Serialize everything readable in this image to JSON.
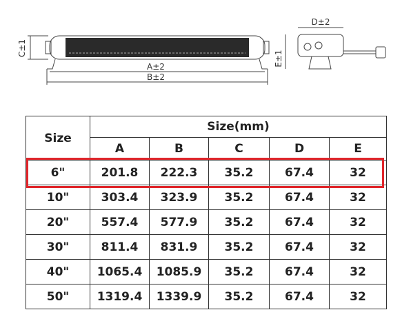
{
  "drawing": {
    "labels": {
      "c": "C±1",
      "a": "A±2",
      "b": "B±2",
      "d": "D±2",
      "e": "E±1"
    }
  },
  "table": {
    "size_header": "Size",
    "group_header": "Size(mm)",
    "columns": [
      "A",
      "B",
      "C",
      "D",
      "E"
    ],
    "rows": [
      [
        "6\"",
        "201.8",
        "222.3",
        "35.2",
        "67.4",
        "32"
      ],
      [
        "10\"",
        "303.4",
        "323.9",
        "35.2",
        "67.4",
        "32"
      ],
      [
        "20\"",
        "557.4",
        "577.9",
        "35.2",
        "67.4",
        "32"
      ],
      [
        "30\"",
        "811.4",
        "831.9",
        "35.2",
        "67.4",
        "32"
      ],
      [
        "40\"",
        "1065.4",
        "1085.9",
        "35.2",
        "67.4",
        "32"
      ],
      [
        "50\"",
        "1319.4",
        "1339.9",
        "35.2",
        "67.4",
        "32"
      ]
    ]
  }
}
